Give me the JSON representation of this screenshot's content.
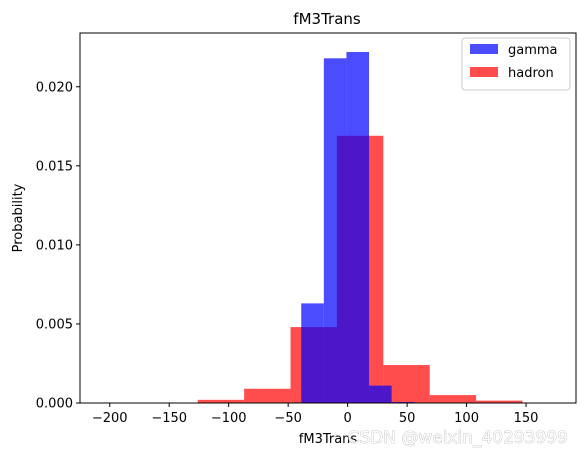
{
  "chart_data": {
    "type": "bar",
    "title": "fM3Trans",
    "xlabel": "fM3Trans",
    "ylabel": "Probability",
    "xlim": [
      -225,
      192
    ],
    "ylim": [
      0,
      0.0234
    ],
    "xticks": [
      -200,
      -150,
      -100,
      -50,
      0,
      50,
      100,
      150
    ],
    "xtick_labels": [
      "−200",
      "−150",
      "−100",
      "−50",
      "0",
      "50",
      "100",
      "150"
    ],
    "yticks": [
      0,
      0.005,
      0.01,
      0.015,
      0.02
    ],
    "ytick_labels": [
      "0.000",
      "0.005",
      "0.010",
      "0.015",
      "0.020"
    ],
    "grid": false,
    "legend_position": "top-right",
    "series": [
      {
        "name": "gamma",
        "color": "#0000ff",
        "opacity": 0.7,
        "bins": [
          {
            "x0": -210,
            "x1": -191,
            "value": 0.0
          },
          {
            "x0": -191,
            "x1": -172,
            "value": 0.0
          },
          {
            "x0": -172,
            "x1": -153,
            "value": 0.0
          },
          {
            "x0": -153,
            "x1": -134,
            "value": 0.0
          },
          {
            "x0": -134,
            "x1": -115,
            "value": 0.0
          },
          {
            "x0": -115,
            "x1": -96,
            "value": 0.0
          },
          {
            "x0": -96,
            "x1": -77,
            "value": 0.0
          },
          {
            "x0": -77,
            "x1": -58,
            "value": 0.0
          },
          {
            "x0": -58,
            "x1": -39,
            "value": 3e-05
          },
          {
            "x0": -39,
            "x1": -20,
            "value": 0.0063
          },
          {
            "x0": -20,
            "x1": -1,
            "value": 0.0218
          },
          {
            "x0": -1,
            "x1": 18,
            "value": 0.0222
          },
          {
            "x0": 18,
            "x1": 37,
            "value": 0.0011
          },
          {
            "x0": 37,
            "x1": 56,
            "value": 6e-05
          },
          {
            "x0": 56,
            "x1": 75,
            "value": 0.0
          },
          {
            "x0": 75,
            "x1": 94,
            "value": 0.0
          },
          {
            "x0": 94,
            "x1": 113,
            "value": 0.0
          },
          {
            "x0": 113,
            "x1": 132,
            "value": 0.0
          },
          {
            "x0": 132,
            "x1": 151,
            "value": 0.0
          },
          {
            "x0": 151,
            "x1": 170,
            "value": 0.0
          }
        ]
      },
      {
        "name": "hadron",
        "color": "#ff0000",
        "opacity": 0.7,
        "bins": [
          {
            "x0": -165,
            "x1": -126,
            "value": 3e-05
          },
          {
            "x0": -126,
            "x1": -87,
            "value": 0.0002
          },
          {
            "x0": -87,
            "x1": -48,
            "value": 0.0009
          },
          {
            "x0": -48,
            "x1": -9,
            "value": 0.0048
          },
          {
            "x0": -9,
            "x1": 30,
            "value": 0.0169
          },
          {
            "x0": 30,
            "x1": 69,
            "value": 0.0024
          },
          {
            "x0": 69,
            "x1": 108,
            "value": 0.0005
          },
          {
            "x0": 108,
            "x1": 147,
            "value": 0.00015
          },
          {
            "x0": 147,
            "x1": 186,
            "value": 3e-05
          }
        ]
      }
    ]
  },
  "watermark": "CSDN @weixin_40293999"
}
